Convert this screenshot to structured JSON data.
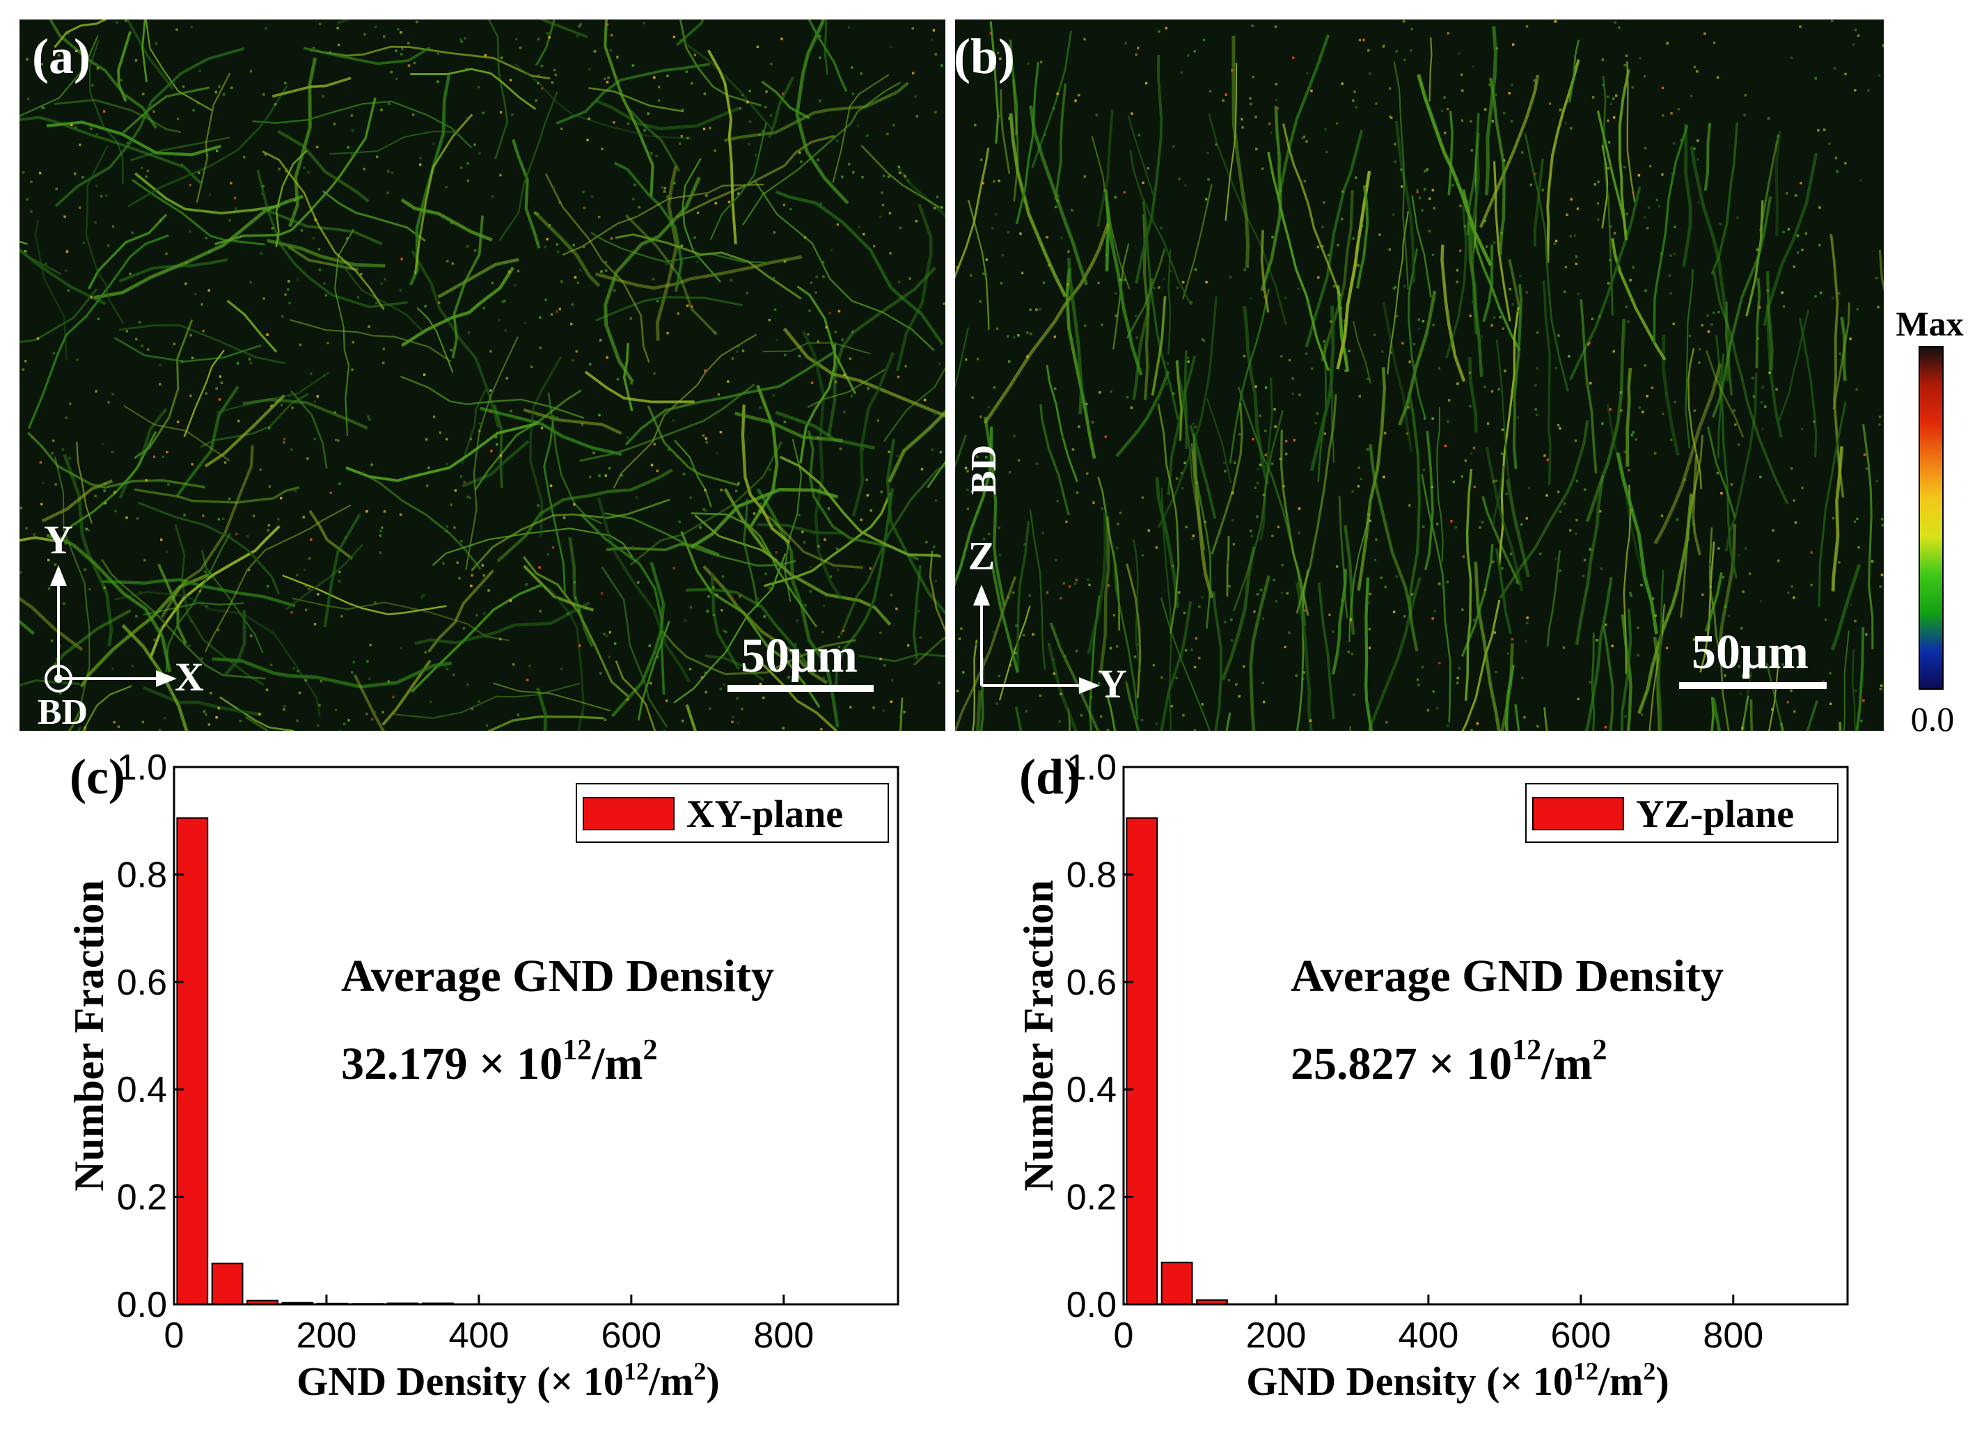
{
  "maps": [
    {
      "id": "a",
      "panel_label": "(a)",
      "scale_bar_label": "50μm",
      "axis_vertical_label": "Y",
      "axis_horizontal_label": "X",
      "out_of_plane_label": "BD",
      "background_color": "#0a160a"
    },
    {
      "id": "b",
      "panel_label": "(b)",
      "scale_bar_label": "50μm",
      "axis_vertical_label": "Z",
      "axis_horizontal_label": "Y",
      "vertical_direction_label": "BD",
      "background_color": "#0a160a"
    }
  ],
  "colorbar": {
    "max_label": "Max",
    "min_label": "0.0",
    "colors": [
      "#0b0b55",
      "#0b2ea8",
      "#12a012",
      "#3ec81a",
      "#d8e21a",
      "#f3c81a",
      "#f07a12",
      "#e02a0a",
      "#b01a08",
      "#101010"
    ]
  },
  "chart_data": [
    {
      "type": "bar",
      "panel_label": "(c)",
      "xlabel_prefix": "GND Density (× 10",
      "xlabel_sup": "12",
      "xlabel_mid": "/m",
      "xlabel_sup2": "2",
      "xlabel_suffix": ")",
      "ylabel": "Number Fraction",
      "xlim": [
        0,
        950
      ],
      "ylim": [
        0,
        1.0
      ],
      "xticks": [
        "0",
        "200",
        "400",
        "600",
        "800"
      ],
      "xtick_values": [
        0,
        200,
        400,
        600,
        800
      ],
      "yticks": [
        "0.0",
        "0.2",
        "0.4",
        "0.6",
        "0.8",
        "1.0"
      ],
      "ytick_values": [
        0,
        0.2,
        0.4,
        0.6,
        0.8,
        1.0
      ],
      "bin_width": 40,
      "bar_centers": [
        24,
        70,
        116,
        162,
        208,
        254,
        300,
        346
      ],
      "values": [
        0.905,
        0.076,
        0.007,
        0.003,
        0.0015,
        0.001,
        0.002,
        0.002
      ],
      "bar_color": "#ee1111",
      "legend": "XY-plane",
      "annotation_title": "Average GND Density",
      "annotation_value": "32.179 ×",
      "annotation_unit_base": "10",
      "annotation_unit_sup": "12",
      "annotation_unit_rest": "/m",
      "annotation_unit_sup2": "2"
    },
    {
      "type": "bar",
      "panel_label": "(d)",
      "xlabel_prefix": "GND Density (× 10",
      "xlabel_sup": "12",
      "xlabel_mid": "/m",
      "xlabel_sup2": "2",
      "xlabel_suffix": ")",
      "ylabel": "Number Fraction",
      "xlim": [
        0,
        950
      ],
      "ylim": [
        0,
        1.0
      ],
      "xticks": [
        "0",
        "200",
        "400",
        "600",
        "800"
      ],
      "xtick_values": [
        0,
        200,
        400,
        600,
        800
      ],
      "yticks": [
        "0.0",
        "0.2",
        "0.4",
        "0.6",
        "0.8",
        "1.0"
      ],
      "ytick_values": [
        0,
        0.2,
        0.4,
        0.6,
        0.8,
        1.0
      ],
      "bin_width": 40,
      "bar_centers": [
        24,
        70,
        116
      ],
      "values": [
        0.905,
        0.078,
        0.008
      ],
      "bar_color": "#ee1111",
      "legend": "YZ-plane",
      "annotation_title": "Average GND Density",
      "annotation_value": "25.827 ×",
      "annotation_unit_base": "10",
      "annotation_unit_sup": "12",
      "annotation_unit_rest": "/m",
      "annotation_unit_sup2": "2"
    }
  ]
}
